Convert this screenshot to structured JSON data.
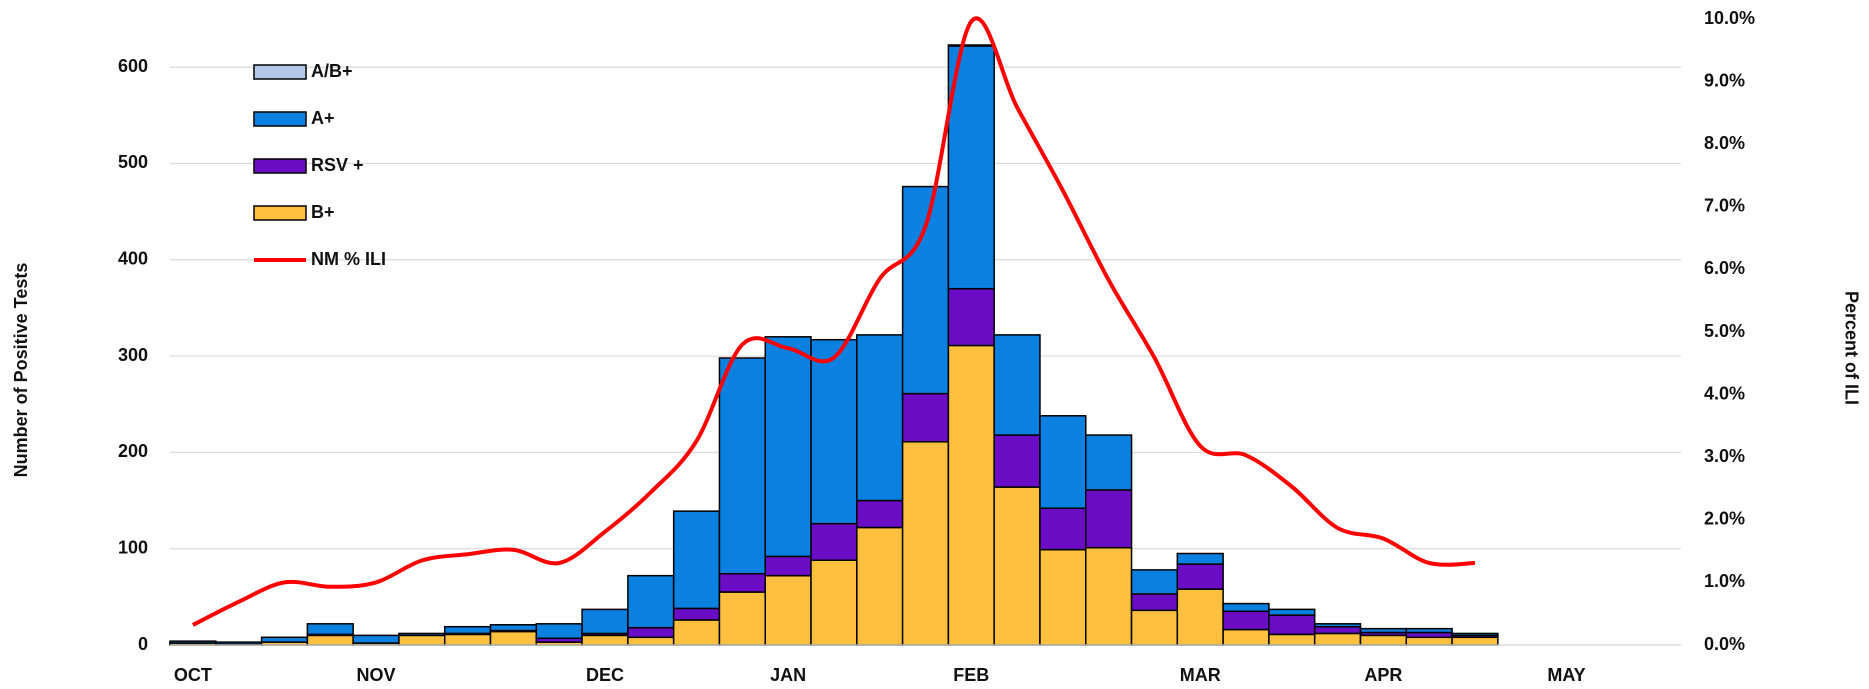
{
  "chart_data": {
    "type": "bar",
    "categories": [
      "OCT",
      null,
      null,
      null,
      "NOV",
      null,
      null,
      null,
      null,
      "DEC",
      null,
      null,
      null,
      "JAN",
      null,
      null,
      null,
      "FEB",
      null,
      null,
      null,
      null,
      "MAR",
      null,
      null,
      null,
      "APR",
      null,
      null,
      null,
      "MAY",
      null,
      null
    ],
    "series": [
      {
        "name": "A/B+",
        "color": "#b4c7e7",
        "values": [
          0,
          0,
          0,
          0,
          0,
          0,
          0,
          0,
          0,
          0,
          0,
          0,
          0,
          0,
          0,
          0,
          0,
          1,
          0,
          0,
          0,
          0,
          0,
          0,
          0,
          0,
          0,
          0,
          0,
          null,
          null,
          null,
          null
        ]
      },
      {
        "name": "A+",
        "color": "#0a80e0",
        "values": [
          2,
          2,
          5,
          11,
          8,
          2,
          7,
          6,
          15,
          25,
          54,
          101,
          224,
          228,
          191,
          172,
          215,
          252,
          104,
          96,
          57,
          25,
          11,
          8,
          6,
          3,
          4,
          4,
          2,
          null,
          null,
          null,
          null
        ]
      },
      {
        "name": "RSV +",
        "color": "#6a0dc4",
        "values": [
          0,
          0,
          0,
          1,
          0,
          0,
          1,
          1,
          4,
          2,
          10,
          12,
          19,
          20,
          38,
          28,
          50,
          59,
          54,
          43,
          60,
          17,
          26,
          19,
          20,
          7,
          3,
          5,
          2,
          null,
          null,
          null,
          null
        ]
      },
      {
        "name": "B+",
        "color": "#ffc040",
        "values": [
          2,
          1,
          3,
          10,
          2,
          10,
          11,
          14,
          3,
          10,
          8,
          26,
          55,
          72,
          88,
          122,
          211,
          311,
          164,
          99,
          101,
          36,
          58,
          16,
          11,
          12,
          10,
          8,
          8,
          null,
          null,
          null,
          null
        ]
      },
      {
        "name": "NM % ILI",
        "color": "#ff0000",
        "type": "line",
        "axis": "y2",
        "values": [
          0.32,
          0.69,
          1.0,
          0.93,
          1.0,
          1.35,
          1.45,
          1.52,
          1.31,
          1.81,
          2.44,
          3.26,
          4.8,
          4.74,
          4.59,
          5.85,
          6.69,
          9.96,
          8.59,
          7.26,
          5.83,
          4.59,
          3.18,
          3.03,
          2.53,
          1.87,
          1.7,
          1.31,
          1.31,
          null,
          null,
          null,
          null
        ]
      }
    ],
    "y_label": "Number of Positive Tests",
    "y2_label": "Percent of ILI",
    "ylim": [
      0,
      650
    ],
    "yticks": [
      0,
      100,
      200,
      300,
      400,
      500,
      600
    ],
    "y2lim": [
      0,
      10
    ],
    "y2ticks": [
      {
        "value": 0,
        "label": "0.0%"
      },
      {
        "value": 1,
        "label": "1.0%"
      },
      {
        "value": 2,
        "label": "2.0%"
      },
      {
        "value": 3,
        "label": "3.0%"
      },
      {
        "value": 4,
        "label": "4.0%"
      },
      {
        "value": 5,
        "label": "5.0%"
      },
      {
        "value": 6,
        "label": "6.0%"
      },
      {
        "value": 7,
        "label": "7.0%"
      },
      {
        "value": 8,
        "label": "8.0%"
      },
      {
        "value": 9,
        "label": "9.0%"
      },
      {
        "value": 10,
        "label": "10.0%"
      }
    ],
    "grid": true,
    "legend": "upper-left"
  }
}
